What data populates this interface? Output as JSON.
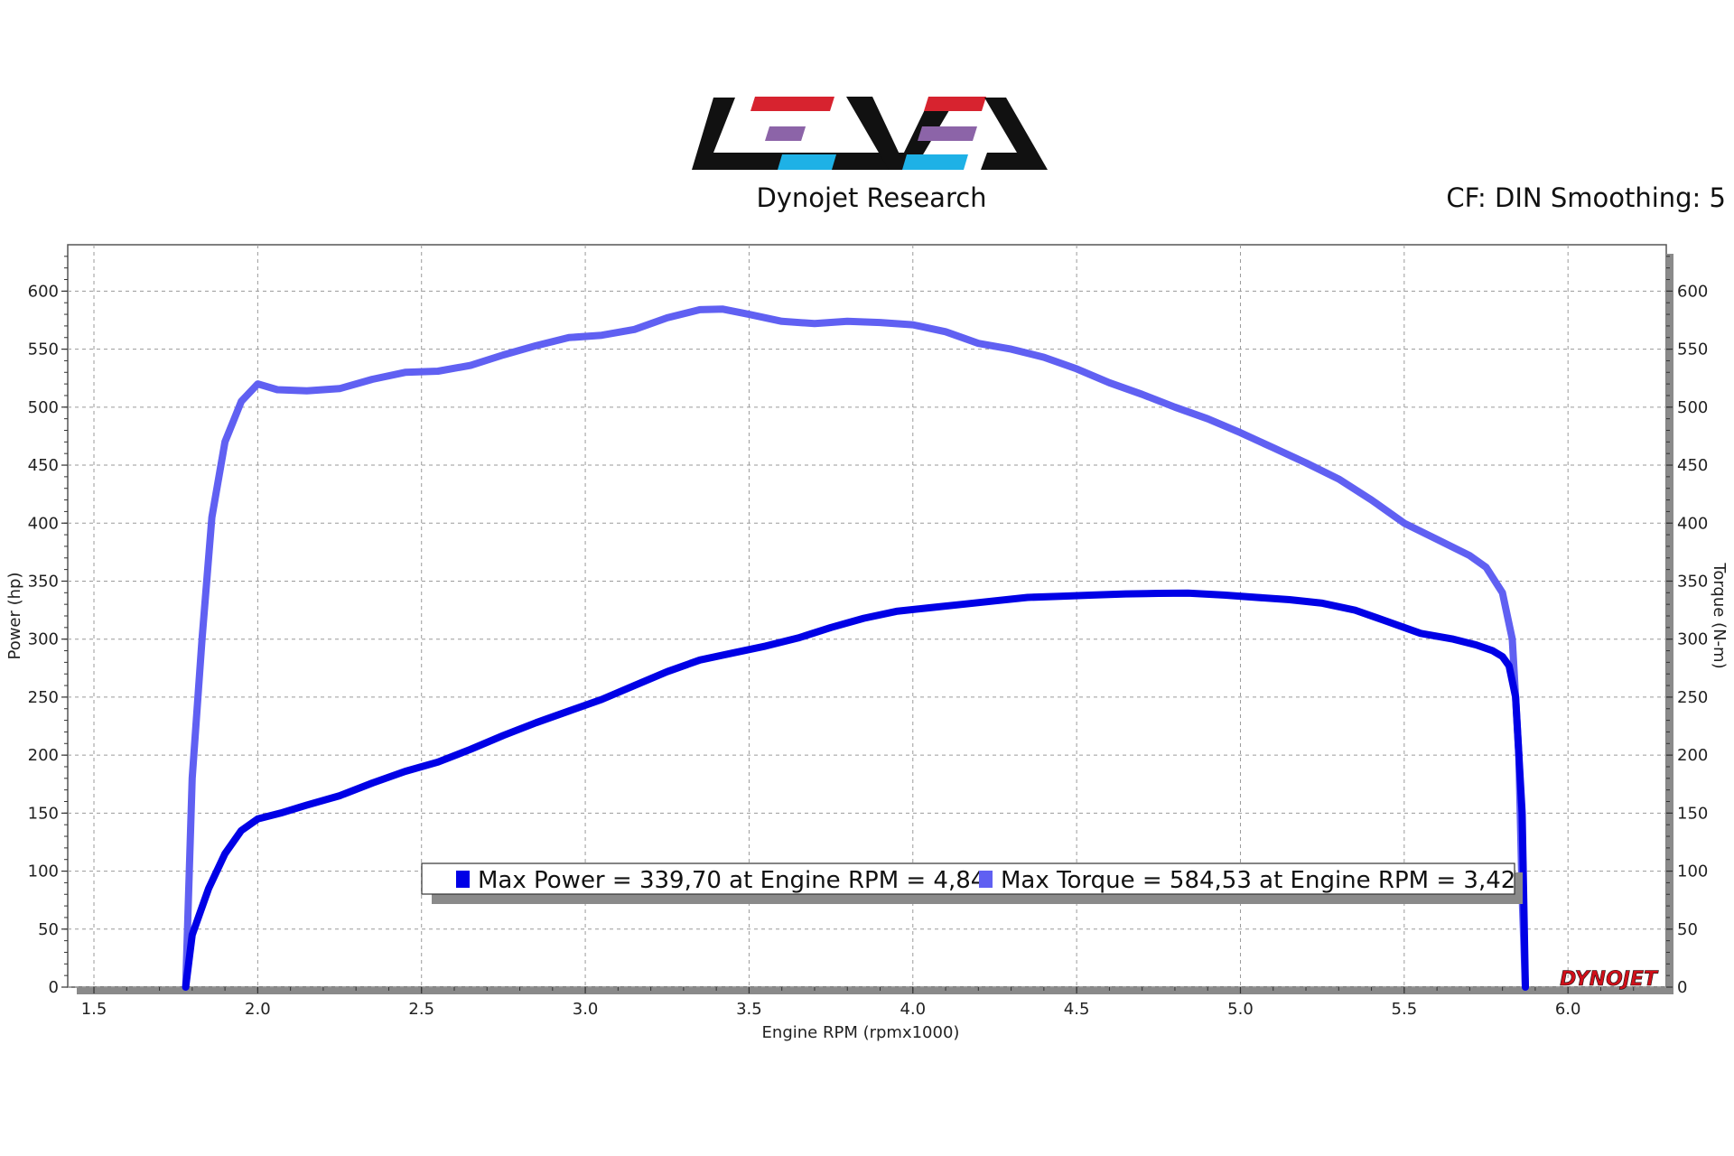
{
  "header": {
    "logo_text": "LEVEL",
    "logo_subtitle": "Dynojet Research",
    "cf_label": "CF: DIN Smoothing: 5"
  },
  "watermark": {
    "text": "DYNOJET"
  },
  "colors": {
    "power": "#0000e6",
    "torque": "#6060f2",
    "logo_black": "#111111",
    "logo_red": "#d7232f",
    "logo_purple": "#8c64a8",
    "logo_cyan": "#1eb1e6",
    "watermark_red": "#d0101a"
  },
  "legend": {
    "power_text": "Max Power = 339,70 at Engine RPM = 4,84",
    "torque_text": "Max Torque = 584,53 at Engine RPM = 3,42"
  },
  "chart_data": {
    "type": "line",
    "xlabel": "Engine RPM (rpmx1000)",
    "ylabel_left": "Power (hp)",
    "ylabel_right": "Torque (N-m)",
    "xlim": [
      1.42,
      6.3
    ],
    "ylim": [
      0,
      640
    ],
    "x_ticks": [
      "1.5",
      "2.0",
      "2.5",
      "3.0",
      "3.5",
      "4.0",
      "4.5",
      "5.0",
      "5.5",
      "6.0"
    ],
    "y_ticks": [
      "0",
      "50",
      "100",
      "150",
      "200",
      "250",
      "300",
      "350",
      "400",
      "450",
      "500",
      "550",
      "600"
    ],
    "grid": true,
    "series": [
      {
        "name": "Max Power",
        "color": "#0000e6",
        "x": [
          1.78,
          1.8,
          1.85,
          1.9,
          1.95,
          2.0,
          2.07,
          2.15,
          2.25,
          2.35,
          2.45,
          2.55,
          2.65,
          2.75,
          2.85,
          2.95,
          3.05,
          3.15,
          3.25,
          3.35,
          3.45,
          3.55,
          3.65,
          3.75,
          3.85,
          3.95,
          4.05,
          4.15,
          4.25,
          4.35,
          4.45,
          4.55,
          4.65,
          4.75,
          4.84,
          4.95,
          5.05,
          5.15,
          5.25,
          5.35,
          5.45,
          5.55,
          5.65,
          5.72,
          5.77,
          5.8,
          5.82,
          5.84,
          5.86,
          5.87
        ],
        "values": [
          0,
          45,
          85,
          115,
          135,
          145,
          150,
          157,
          165,
          176,
          186,
          194,
          205,
          217,
          228,
          238,
          248,
          260,
          272,
          282,
          288,
          294,
          301,
          310,
          318,
          324,
          327,
          330,
          333,
          336,
          337,
          338,
          339,
          339.5,
          339.7,
          338,
          336,
          334,
          331,
          325,
          315,
          305,
          300,
          295,
          290,
          285,
          277,
          250,
          150,
          0
        ]
      },
      {
        "name": "Max Torque",
        "color": "#6060f2",
        "x": [
          1.78,
          1.8,
          1.83,
          1.86,
          1.9,
          1.95,
          2.0,
          2.06,
          2.15,
          2.25,
          2.35,
          2.45,
          2.55,
          2.65,
          2.75,
          2.85,
          2.95,
          3.05,
          3.15,
          3.25,
          3.35,
          3.42,
          3.5,
          3.6,
          3.7,
          3.8,
          3.9,
          4.0,
          4.1,
          4.2,
          4.3,
          4.4,
          4.5,
          4.6,
          4.7,
          4.8,
          4.9,
          5.0,
          5.1,
          5.2,
          5.3,
          5.4,
          5.5,
          5.6,
          5.7,
          5.75,
          5.8,
          5.83,
          5.85,
          5.86,
          5.87
        ],
        "values": [
          0,
          180,
          300,
          405,
          470,
          505,
          520,
          515,
          514,
          516,
          524,
          530,
          531,
          536,
          545,
          553,
          560,
          562,
          567,
          577,
          584,
          584.5,
          580,
          574,
          572,
          574,
          573,
          571,
          565,
          555,
          550,
          543,
          533,
          521,
          511,
          500,
          490,
          478,
          465,
          452,
          438,
          420,
          400,
          386,
          372,
          362,
          340,
          300,
          200,
          80,
          0
        ]
      }
    ]
  }
}
